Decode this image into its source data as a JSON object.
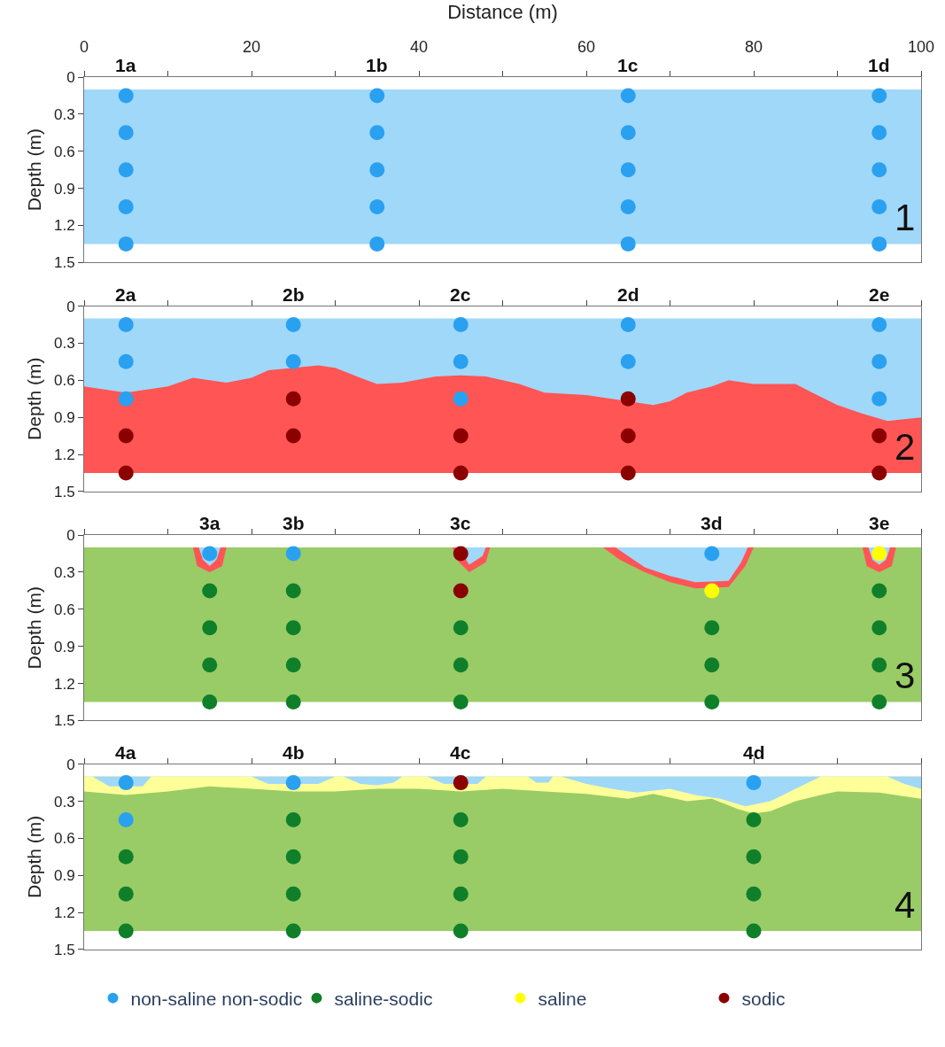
{
  "chart_data": [
    {
      "type": "scatter",
      "xlabel": "Distance (m)",
      "ylabel": "Depth (m)",
      "xlim": [
        0,
        100
      ],
      "xticks": [
        0,
        {
          "value": 10,
          "label": null
        },
        20,
        {
          "value": 30,
          "label": null
        },
        40,
        {
          "value": 50,
          "label": null
        },
        60,
        {
          "value": 70,
          "label": null
        },
        80,
        {
          "value": 90,
          "label": null
        },
        100
      ],
      "ylim": [
        1.5,
        0
      ],
      "yticks": [
        0,
        0.3,
        0.6,
        0.9,
        1.2,
        1.5
      ],
      "bands": [
        {
          "axis": "y",
          "from": 0.1,
          "to": 1.35,
          "color": "#a0d8fa"
        }
      ],
      "annotations": [
        "1a",
        "1b",
        "1c",
        "1d",
        "1"
      ],
      "series": [
        {
          "color": "#2aa0f0",
          "marker": "circle",
          "x": [
            5,
            5,
            5,
            5,
            5,
            35,
            35,
            35,
            35,
            35,
            65,
            65,
            65,
            65,
            65,
            95,
            95,
            95,
            95,
            95
          ],
          "values": [
            0.15,
            0.45,
            0.75,
            1.05,
            1.35,
            0.15,
            0.45,
            0.75,
            1.05,
            1.35,
            0.15,
            0.45,
            0.75,
            1.05,
            1.35,
            0.15,
            0.45,
            0.75,
            1.05,
            1.35
          ]
        }
      ]
    },
    {
      "type": "scatter",
      "ylabel": "Depth (m)",
      "xlim": [
        0,
        100
      ],
      "xticks": [
        0,
        {
          "value": 10,
          "label": null
        },
        20,
        {
          "value": 30,
          "label": null
        },
        40,
        {
          "value": 50,
          "label": null
        },
        60,
        {
          "value": 70,
          "label": null
        },
        80,
        {
          "value": 90,
          "label": null
        },
        100
      ],
      "ylim": [
        1.5,
        0
      ],
      "yticks": [
        0,
        0.3,
        0.6,
        0.9,
        1.2,
        1.5
      ],
      "tick_labels": "y",
      "bands": [
        {
          "axis": "y",
          "from": 0.1,
          "to": 1.35,
          "color": "#a0d8fa"
        }
      ],
      "annotations": [
        "2a",
        "2b",
        "2c",
        "2d",
        "2e",
        "2"
      ],
      "series": [
        {
          "type": "area",
          "color": "#ff5555",
          "x": [
            0,
            5,
            10,
            13,
            15,
            17,
            20,
            22,
            25,
            28,
            30,
            33,
            35,
            38,
            42,
            45,
            48,
            52,
            55,
            60,
            65,
            68,
            70,
            72,
            75,
            77,
            80,
            83,
            85,
            87,
            90,
            93,
            96,
            100
          ],
          "values": [
            null,
            null,
            null,
            null,
            null,
            null,
            null,
            null,
            null,
            null,
            null,
            null,
            null,
            null,
            null,
            null,
            null,
            null,
            null,
            null,
            null,
            null,
            null,
            null,
            null,
            null,
            null,
            null,
            null,
            null,
            null,
            null,
            null,
            null
          ],
          "upper": [
            0.65,
            0.7,
            0.65,
            0.58,
            0.6,
            0.62,
            0.58,
            0.52,
            0.5,
            0.48,
            0.5,
            0.58,
            0.63,
            0.62,
            0.57,
            0.56,
            0.57,
            0.63,
            0.7,
            0.72,
            0.77,
            0.8,
            0.77,
            0.7,
            0.65,
            0.6,
            0.63,
            0.63,
            0.63,
            0.7,
            0.8,
            0.87,
            0.93,
            0.9
          ],
          "lower": [
            1.35,
            1.35,
            1.35,
            1.35,
            1.35,
            1.35,
            1.35,
            1.35,
            1.35,
            1.35,
            1.35,
            1.35,
            1.35,
            1.35,
            1.35,
            1.35,
            1.35,
            1.35,
            1.35,
            1.35,
            1.35,
            1.35,
            1.35,
            1.35,
            1.35,
            1.35,
            1.35,
            1.35,
            1.35,
            1.35,
            1.35,
            1.35,
            1.35,
            1.35
          ]
        },
        {
          "color": "#2aa0f0",
          "marker": "circle",
          "x": [
            5,
            5,
            5,
            25,
            25,
            45,
            45,
            45,
            65,
            65,
            95,
            95,
            95
          ],
          "values": [
            0.15,
            0.45,
            0.75,
            0.15,
            0.45,
            0.15,
            0.45,
            0.75,
            0.15,
            0.45,
            0.15,
            0.45,
            0.75
          ]
        },
        {
          "color": "#8b0000",
          "marker": "circle",
          "x": [
            5,
            5,
            25,
            25,
            45,
            45,
            65,
            65,
            65,
            95,
            95
          ],
          "values": [
            1.05,
            1.35,
            0.75,
            1.05,
            1.05,
            1.35,
            0.75,
            1.05,
            1.35,
            1.05,
            1.35
          ]
        }
      ]
    },
    {
      "type": "scatter",
      "ylabel": "Depth (m)",
      "xlim": [
        0,
        100
      ],
      "xticks": [
        0,
        {
          "value": 10,
          "label": null
        },
        20,
        {
          "value": 30,
          "label": null
        },
        40,
        {
          "value": 50,
          "label": null
        },
        60,
        {
          "value": 70,
          "label": null
        },
        80,
        {
          "value": 90,
          "label": null
        },
        100
      ],
      "ylim": [
        1.5,
        0
      ],
      "yticks": [
        0,
        0.3,
        0.6,
        0.9,
        1.2,
        1.5
      ],
      "tick_labels": "y",
      "legend": "bottom",
      "bands": [
        {
          "axis": "y",
          "from": 0.1,
          "to": 1.35,
          "color": "#99cc66"
        }
      ],
      "annotations": [
        "3a",
        "3b",
        "3c",
        "3d",
        "3e",
        "3"
      ],
      "series": [
        {
          "type": "area",
          "color": "#ff5555",
          "x": [
            13,
            13.5,
            15,
            16.5,
            17
          ],
          "values": [
            null,
            null,
            null,
            null,
            null
          ],
          "upper": [
            0.1,
            0.25,
            0.3,
            0.25,
            0.1
          ],
          "lower": [
            0.1,
            0.1,
            0.1,
            0.1,
            0.1
          ]
        },
        {
          "type": "area",
          "color": "#a0d8fa",
          "x": [
            13.7,
            14.2,
            15,
            15.8,
            16.3
          ],
          "values": [
            null,
            null,
            null,
            null,
            null
          ],
          "upper": [
            0.1,
            0.2,
            0.25,
            0.2,
            0.1
          ],
          "lower": [
            0.1,
            0.1,
            0.1,
            0.1,
            0.1
          ]
        },
        {
          "type": "area",
          "color": "#ff5555",
          "x": [
            44,
            44.5,
            46,
            48,
            48.5
          ],
          "values": [
            null,
            null,
            null,
            null,
            null
          ],
          "upper": [
            0.1,
            0.2,
            0.3,
            0.22,
            0.1
          ],
          "lower": [
            0.1,
            0.1,
            0.1,
            0.1,
            0.1
          ]
        },
        {
          "type": "area",
          "color": "#a0d8fa",
          "x": [
            44.8,
            46,
            47.6,
            48
          ],
          "values": [
            null,
            null,
            null,
            null
          ],
          "upper": [
            0.1,
            0.24,
            0.17,
            0.1
          ],
          "lower": [
            0.1,
            0.1,
            0.1,
            0.1
          ]
        },
        {
          "type": "area",
          "color": "#ff5555",
          "x": [
            62,
            64,
            67,
            70,
            73,
            77,
            79,
            80
          ],
          "values": [
            null,
            null,
            null,
            null,
            null,
            null,
            null,
            null
          ],
          "upper": [
            0.1,
            0.2,
            0.3,
            0.38,
            0.43,
            0.42,
            0.25,
            0.1
          ],
          "lower": [
            0.1,
            0.1,
            0.1,
            0.1,
            0.1,
            0.1,
            0.1,
            0.1
          ]
        },
        {
          "type": "area",
          "color": "#a0d8fa",
          "x": [
            63.5,
            65,
            67,
            70,
            73,
            77,
            78.5,
            79.3
          ],
          "values": [
            null,
            null,
            null,
            null,
            null,
            null,
            null,
            null
          ],
          "upper": [
            0.1,
            0.17,
            0.26,
            0.33,
            0.38,
            0.37,
            0.22,
            0.1
          ],
          "lower": [
            0.1,
            0.1,
            0.1,
            0.1,
            0.1,
            0.1,
            0.1,
            0.1
          ]
        },
        {
          "type": "area",
          "color": "#ff5555",
          "x": [
            93,
            93.5,
            95,
            96.5,
            97
          ],
          "values": [
            null,
            null,
            null,
            null,
            null
          ],
          "upper": [
            0.1,
            0.25,
            0.3,
            0.25,
            0.1
          ],
          "lower": [
            0.1,
            0.1,
            0.1,
            0.1,
            0.1
          ]
        },
        {
          "type": "area",
          "color": "#a0d8fa",
          "x": [
            93.7,
            94.2,
            95,
            95.8,
            96.3
          ],
          "values": [
            null,
            null,
            null,
            null,
            null
          ],
          "upper": [
            0.1,
            0.2,
            0.24,
            0.2,
            0.1
          ],
          "lower": [
            0.1,
            0.1,
            0.1,
            0.1,
            0.1
          ]
        },
        {
          "name": "non-saline non-sodic",
          "color": "#2aa0f0",
          "marker": "circle",
          "x": [
            15,
            25,
            75
          ],
          "values": [
            0.15,
            0.15,
            0.15
          ]
        },
        {
          "name": "saline-sodic",
          "color": "#0f7f2a",
          "marker": "circle",
          "x": [
            15,
            15,
            15,
            15,
            25,
            25,
            25,
            25,
            45,
            45,
            45,
            75,
            75,
            75,
            95,
            95,
            95,
            95
          ],
          "values": [
            0.45,
            0.75,
            1.05,
            1.35,
            0.45,
            0.75,
            1.05,
            1.35,
            0.75,
            1.05,
            1.35,
            0.75,
            1.05,
            1.35,
            0.45,
            0.75,
            1.05,
            1.35
          ]
        },
        {
          "name": "saline",
          "color": "#ffff00",
          "marker": "circle",
          "x": [
            75,
            95
          ],
          "values": [
            0.45,
            0.15
          ]
        },
        {
          "name": "sodic",
          "color": "#8b0000",
          "marker": "circle",
          "x": [
            45,
            45
          ],
          "values": [
            0.15,
            0.45
          ]
        }
      ]
    },
    {
      "type": "scatter",
      "ylabel": "Depth (m)",
      "xlim": [
        0,
        100
      ],
      "xticks": [
        0,
        {
          "value": 10,
          "label": null
        },
        20,
        {
          "value": 30,
          "label": null
        },
        40,
        {
          "value": 50,
          "label": null
        },
        60,
        {
          "value": 70,
          "label": null
        },
        80,
        {
          "value": 90,
          "label": null
        },
        100
      ],
      "ylim": [
        1.5,
        0
      ],
      "yticks": [
        0,
        0.3,
        0.6,
        0.9,
        1.2,
        1.5
      ],
      "tick_labels": "y",
      "bands": [
        {
          "axis": "y",
          "from": 0.1,
          "to": 1.35,
          "color": "#99cc66"
        }
      ],
      "annotations": [
        "4a",
        "4b",
        "4c",
        "4d",
        "4"
      ],
      "series": [
        {
          "type": "area",
          "color": "#ffff99",
          "x": [
            0,
            5,
            10,
            15,
            20,
            25,
            30,
            35,
            40,
            45,
            50,
            55,
            60,
            65,
            68,
            72,
            75,
            78,
            80,
            82,
            85,
            88,
            90,
            95,
            100
          ],
          "values": [
            null,
            null,
            null,
            null,
            null,
            null,
            null,
            null,
            null,
            null,
            null,
            null,
            null,
            null,
            null,
            null,
            null,
            null,
            null,
            null,
            null,
            null,
            null,
            null,
            null
          ],
          "upper": [
            0.22,
            0.25,
            0.22,
            0.18,
            0.2,
            0.22,
            0.22,
            0.2,
            0.2,
            0.22,
            0.2,
            0.22,
            0.24,
            0.28,
            0.24,
            0.3,
            0.28,
            0.36,
            0.4,
            0.38,
            0.3,
            0.25,
            0.22,
            0.23,
            0.28
          ],
          "lower": [
            0.1,
            0.1,
            0.1,
            0.1,
            0.1,
            0.1,
            0.1,
            0.1,
            0.1,
            0.1,
            0.1,
            0.1,
            0.1,
            0.1,
            0.1,
            0.1,
            0.1,
            0.1,
            0.1,
            0.1,
            0.1,
            0.1,
            0.1,
            0.1,
            0.1
          ]
        },
        {
          "type": "area",
          "color": "#a0d8fa",
          "x": [
            1,
            3,
            7,
            8
          ],
          "values": [
            null,
            null,
            null,
            null
          ],
          "upper": [
            0.1,
            0.18,
            0.18,
            0.1
          ],
          "lower": [
            0.1,
            0.1,
            0.1,
            0.1
          ]
        },
        {
          "type": "area",
          "color": "#a0d8fa",
          "x": [
            20,
            22,
            28,
            30
          ],
          "values": [
            null,
            null,
            null,
            null
          ],
          "upper": [
            0.1,
            0.16,
            0.16,
            0.1
          ],
          "lower": [
            0.1,
            0.1,
            0.1,
            0.1
          ]
        },
        {
          "type": "area",
          "color": "#a0d8fa",
          "x": [
            31,
            33,
            35,
            37,
            38
          ],
          "values": [
            null,
            null,
            null,
            null,
            null
          ],
          "upper": [
            0.1,
            0.16,
            0.17,
            0.15,
            0.1
          ],
          "lower": [
            0.1,
            0.1,
            0.1,
            0.1,
            0.1
          ]
        },
        {
          "type": "area",
          "color": "#a0d8fa",
          "x": [
            41,
            43,
            47,
            48
          ],
          "values": [
            null,
            null,
            null,
            null
          ],
          "upper": [
            0.1,
            0.16,
            0.16,
            0.1
          ],
          "lower": [
            0.1,
            0.1,
            0.1,
            0.1
          ]
        },
        {
          "type": "area",
          "color": "#a0d8fa",
          "x": [
            53,
            54,
            55.5,
            56
          ],
          "values": [
            null,
            null,
            null,
            null
          ],
          "upper": [
            0.1,
            0.15,
            0.15,
            0.1
          ],
          "lower": [
            0.1,
            0.1,
            0.1,
            0.1
          ]
        },
        {
          "type": "area",
          "color": "#a0d8fa",
          "x": [
            57,
            60,
            63,
            66,
            70,
            73,
            76,
            79,
            82,
            85,
            88
          ],
          "values": [
            null,
            null,
            null,
            null,
            null,
            null,
            null,
            null,
            null,
            null,
            null
          ],
          "upper": [
            0.1,
            0.16,
            0.2,
            0.23,
            0.2,
            0.25,
            0.28,
            0.34,
            0.3,
            0.2,
            0.1
          ],
          "lower": [
            0.1,
            0.1,
            0.1,
            0.1,
            0.1,
            0.1,
            0.1,
            0.1,
            0.1,
            0.1,
            0.1
          ]
        },
        {
          "type": "area",
          "color": "#a0d8fa",
          "x": [
            96,
            98,
            100
          ],
          "values": [
            null,
            null,
            null
          ],
          "upper": [
            0.1,
            0.16,
            0.2
          ],
          "lower": [
            0.1,
            0.1,
            0.1
          ]
        },
        {
          "color": "#2aa0f0",
          "marker": "circle",
          "x": [
            5,
            5,
            25,
            80
          ],
          "values": [
            0.15,
            0.45,
            0.15,
            0.15
          ]
        },
        {
          "color": "#0f7f2a",
          "marker": "circle",
          "x": [
            5,
            5,
            5,
            25,
            25,
            25,
            25,
            45,
            45,
            45,
            45,
            80,
            80,
            80,
            80
          ],
          "values": [
            0.75,
            1.05,
            1.35,
            0.45,
            0.75,
            1.05,
            1.35,
            0.45,
            0.75,
            1.05,
            1.35,
            0.45,
            0.75,
            1.05,
            1.35
          ]
        },
        {
          "color": "#8b0000",
          "marker": "circle",
          "x": [
            45
          ],
          "values": [
            0.15
          ]
        }
      ]
    }
  ]
}
